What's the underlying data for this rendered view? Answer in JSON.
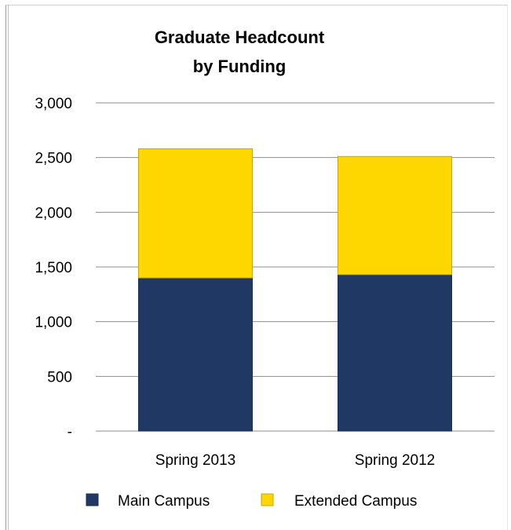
{
  "chart_data": {
    "type": "bar",
    "stacked": true,
    "title": "Graduate Headcount",
    "subtitle": "by Funding",
    "categories": [
      "Spring 2013",
      "Spring 2012"
    ],
    "series": [
      {
        "name": "Main Campus",
        "values": [
          1400,
          1430
        ],
        "color": "#1f3864"
      },
      {
        "name": "Extended Campus",
        "values": [
          1180,
          1080
        ],
        "color": "#ffd700"
      }
    ],
    "ylim": [
      0,
      3000
    ],
    "yticks": [
      0,
      500,
      1000,
      1500,
      2000,
      2500,
      3000
    ],
    "ytick_labels": [
      "-",
      "500",
      "1,000",
      "1,500",
      "2,000",
      "2,500",
      "3,000"
    ],
    "grid": true,
    "legend_position": "bottom"
  }
}
